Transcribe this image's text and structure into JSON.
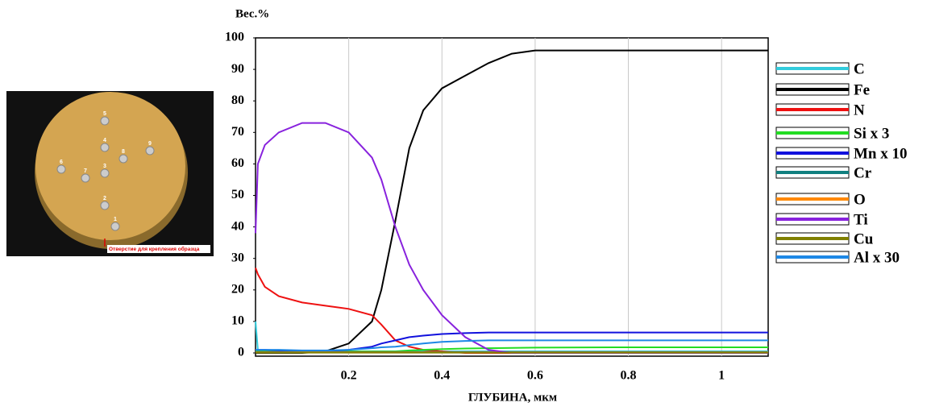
{
  "photo": {
    "holes": [
      "1",
      "2",
      "3",
      "4",
      "5",
      "6",
      "7",
      "8",
      "9"
    ],
    "caption": "Отверстие для крепления образца"
  },
  "chart_data": {
    "type": "line",
    "ylabel": "Вес.%",
    "xlabel": "ГЛУБИНА, мкм",
    "x": [
      0,
      0.005,
      0.02,
      0.05,
      0.1,
      0.15,
      0.2,
      0.25,
      0.27,
      0.3,
      0.33,
      0.36,
      0.4,
      0.45,
      0.5,
      0.55,
      0.6,
      0.8,
      1,
      1.1
    ],
    "xlim": [
      0,
      1.1
    ],
    "xticks": [
      0.2,
      0.4,
      0.6,
      0.8,
      1
    ],
    "ylim": [
      0,
      100
    ],
    "yticks": [
      0,
      10,
      20,
      30,
      40,
      50,
      60,
      70,
      80,
      90,
      100
    ],
    "grid": "x",
    "legend": "right",
    "series": [
      {
        "name": "C",
        "color": "#33ccdd",
        "values": [
          10,
          1,
          0.5,
          0.5,
          0.5,
          0.5,
          0.5,
          0.5,
          0.5,
          0.5,
          0.5,
          0.5,
          0.5,
          0.5,
          0.5,
          0.5,
          0.5,
          0.5,
          0.5,
          0.5
        ]
      },
      {
        "name": "Fe",
        "color": "#000000",
        "values": [
          0,
          0,
          0,
          0,
          0,
          0.5,
          3,
          10,
          20,
          42,
          65,
          77,
          84,
          88,
          92,
          95,
          96,
          96,
          96,
          96
        ]
      },
      {
        "name": "N",
        "color": "#ee1111",
        "values": [
          27,
          25,
          21,
          18,
          16,
          15,
          14,
          12,
          9,
          4,
          2,
          1,
          0.5,
          0,
          0,
          0,
          0,
          0,
          0,
          0
        ]
      },
      {
        "name": "Si x 3",
        "color": "#22dd22",
        "values": [
          0.5,
          0.5,
          0.5,
          0.5,
          0.5,
          0.5,
          0.5,
          0.5,
          0.5,
          0.5,
          0.8,
          1,
          1.2,
          1.4,
          1.5,
          1.6,
          1.7,
          1.8,
          1.8,
          1.8
        ]
      },
      {
        "name": "Mn x 10",
        "color": "#1111dd",
        "values": [
          1,
          1,
          1,
          0.8,
          0.5,
          0.5,
          1,
          2,
          3,
          4,
          5,
          5.5,
          6,
          6.3,
          6.5,
          6.5,
          6.5,
          6.5,
          6.5,
          6.5
        ]
      },
      {
        "name": "Cr",
        "color": "#118080",
        "values": [
          0.3,
          0.3,
          0.3,
          0.3,
          0.3,
          0.3,
          0.3,
          0.3,
          0.3,
          0.3,
          0.3,
          0.3,
          0.3,
          0.3,
          0.3,
          0.3,
          0.3,
          0.3,
          0.3,
          0.3
        ]
      },
      {
        "name": "O",
        "color": "#ff8800",
        "values": [
          0.2,
          0.2,
          0.2,
          0.2,
          0.2,
          0.2,
          0.2,
          0.2,
          0.2,
          0.2,
          0.2,
          0.2,
          0.2,
          0.2,
          0.2,
          0.2,
          0.2,
          0.2,
          0.2,
          0.2
        ]
      },
      {
        "name": "Ti",
        "color": "#8822dd",
        "values": [
          38,
          60,
          66,
          70,
          73,
          73,
          70,
          62,
          55,
          40,
          28,
          20,
          12,
          5,
          1,
          0,
          0,
          0,
          0,
          0
        ]
      },
      {
        "name": "Cu",
        "color": "#808000",
        "values": [
          0.1,
          0.1,
          0.1,
          0.1,
          0.1,
          0.1,
          0.1,
          0.1,
          0.1,
          0.1,
          0.1,
          0.1,
          0.1,
          0.1,
          0.1,
          0.1,
          0.1,
          0.1,
          0.1,
          0.1
        ]
      },
      {
        "name": "Al x 30",
        "color": "#1e88e5",
        "values": [
          1,
          1,
          1,
          1,
          0.8,
          0.8,
          1,
          1.5,
          1.8,
          2,
          2.5,
          3,
          3.5,
          3.8,
          4,
          4,
          4,
          4,
          4,
          4
        ]
      }
    ]
  }
}
